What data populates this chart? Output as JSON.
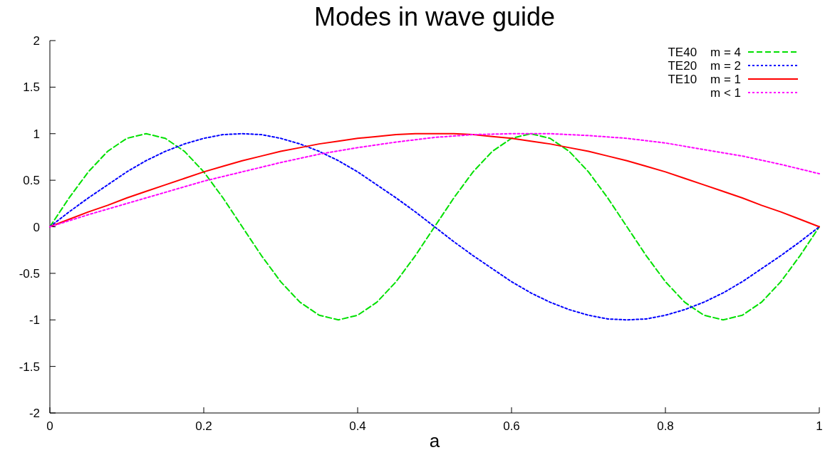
{
  "chart_data": {
    "type": "line",
    "title": "Modes in wave guide",
    "xlabel": "a",
    "xlim": [
      0,
      1
    ],
    "xticks": [
      0,
      0.2,
      0.4,
      0.6,
      0.8,
      1
    ],
    "ylim": [
      -2,
      2
    ],
    "yticks": [
      -2,
      -1.5,
      -1,
      -0.5,
      0,
      0.5,
      1,
      1.5,
      2
    ],
    "grid": false,
    "legend": "top right",
    "marker": "none",
    "x": [
      0,
      0.025,
      0.05,
      0.075,
      0.1,
      0.125,
      0.15,
      0.175,
      0.2,
      0.225,
      0.25,
      0.275,
      0.3,
      0.325,
      0.35,
      0.375,
      0.4,
      0.425,
      0.45,
      0.475,
      0.5,
      0.525,
      0.55,
      0.575,
      0.6,
      0.625,
      0.65,
      0.675,
      0.7,
      0.725,
      0.75,
      0.775,
      0.8,
      0.825,
      0.85,
      0.875,
      0.9,
      0.925,
      0.95,
      0.975,
      1
    ],
    "series": [
      {
        "name": "TE40    m = 4",
        "color": "#00e000",
        "line_style": "dashed",
        "values": [
          0,
          0.31,
          0.59,
          0.81,
          0.95,
          1,
          0.95,
          0.81,
          0.59,
          0.31,
          0,
          -0.31,
          -0.59,
          -0.81,
          -0.95,
          -1,
          -0.95,
          -0.81,
          -0.59,
          -0.31,
          0,
          0.31,
          0.59,
          0.81,
          0.95,
          1,
          0.95,
          0.81,
          0.59,
          0.31,
          0,
          -0.31,
          -0.59,
          -0.81,
          -0.95,
          -1,
          -0.95,
          -0.81,
          -0.59,
          -0.31,
          0
        ]
      },
      {
        "name": "TE20    m = 2",
        "color": "#0000ff",
        "line_style": "dotted",
        "values": [
          0,
          0.16,
          0.31,
          0.45,
          0.59,
          0.71,
          0.81,
          0.89,
          0.95,
          0.99,
          1,
          0.99,
          0.95,
          0.89,
          0.81,
          0.71,
          0.59,
          0.45,
          0.31,
          0.16,
          0,
          -0.16,
          -0.31,
          -0.45,
          -0.59,
          -0.71,
          -0.81,
          -0.89,
          -0.95,
          -0.99,
          -1,
          -0.99,
          -0.95,
          -0.89,
          -0.81,
          -0.71,
          -0.59,
          -0.45,
          -0.31,
          -0.16,
          0
        ]
      },
      {
        "name": "TE10    m = 1",
        "color": "#ff0000",
        "line_style": "solid",
        "values": [
          0,
          0.08,
          0.16,
          0.23,
          0.31,
          0.38,
          0.45,
          0.52,
          0.59,
          0.65,
          0.71,
          0.76,
          0.81,
          0.85,
          0.89,
          0.92,
          0.95,
          0.97,
          0.99,
          1,
          1,
          1,
          0.99,
          0.97,
          0.95,
          0.92,
          0.89,
          0.85,
          0.81,
          0.76,
          0.71,
          0.65,
          0.59,
          0.52,
          0.45,
          0.38,
          0.31,
          0.23,
          0.16,
          0.08,
          0
        ]
      },
      {
        "name": "m < 1",
        "color": "#ff00ff",
        "line_style": "dotted",
        "x": [
          0,
          0.05,
          0.1,
          0.15,
          0.2,
          0.25,
          0.3,
          0.35,
          0.4,
          0.45,
          0.5,
          0.55,
          0.6,
          0.65,
          0.7,
          0.75,
          0.8,
          0.85,
          0.9,
          0.95,
          1
        ],
        "values": [
          0,
          0.13,
          0.25,
          0.37,
          0.49,
          0.59,
          0.69,
          0.78,
          0.85,
          0.91,
          0.96,
          0.99,
          1,
          1,
          0.98,
          0.95,
          0.9,
          0.83,
          0.76,
          0.67,
          0.57
        ]
      }
    ]
  }
}
